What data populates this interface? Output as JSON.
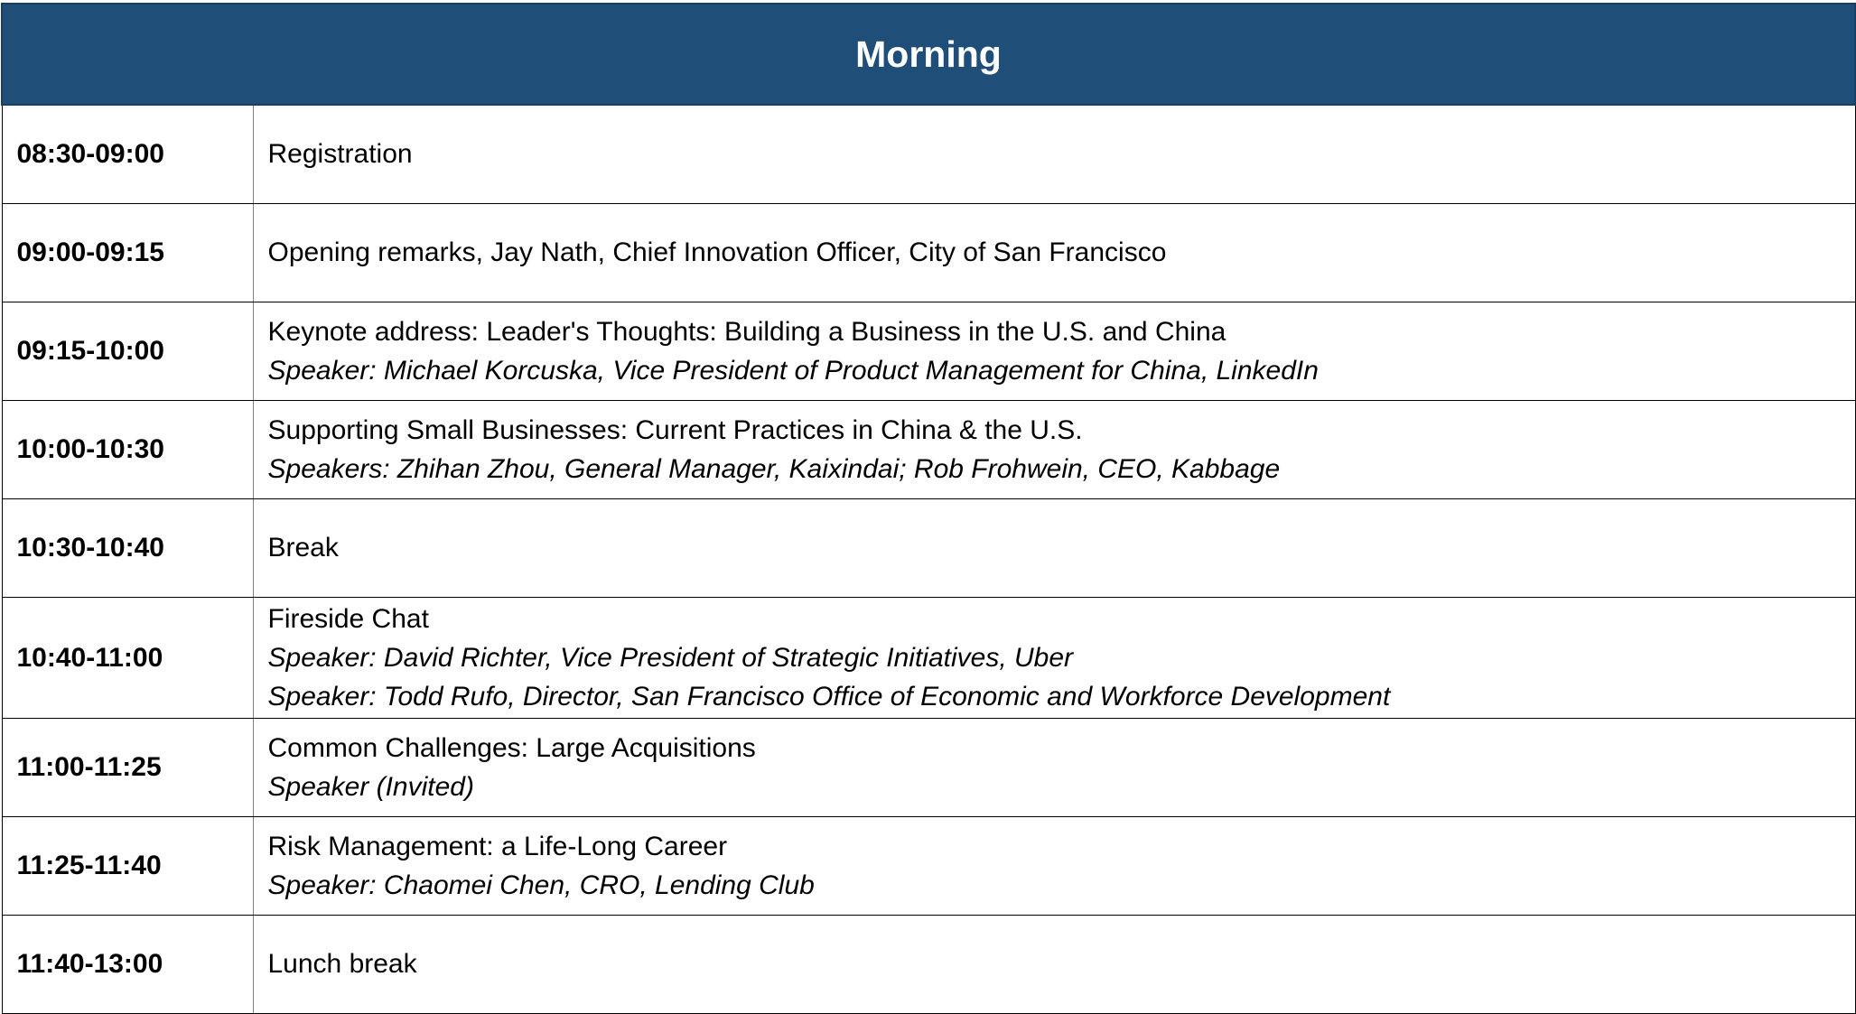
{
  "header": {
    "title": "Morning"
  },
  "rows": [
    {
      "time": "08:30-09:00",
      "title": "Registration",
      "speakers": []
    },
    {
      "time": "09:00-09:15",
      "title": "Opening remarks, Jay Nath, Chief Innovation Officer, City of San Francisco",
      "speakers": []
    },
    {
      "time": "09:15-10:00",
      "title": "Keynote address: Leader's Thoughts: Building a Business in the U.S. and China",
      "speakers": [
        "Speaker: Michael Korcuska, Vice President of Product Management for China, LinkedIn"
      ]
    },
    {
      "time": "10:00-10:30",
      "title": "Supporting Small Businesses: Current Practices in China & the U.S.",
      "speakers": [
        "Speakers: Zhihan Zhou, General Manager, Kaixindai; Rob Frohwein, CEO, Kabbage"
      ]
    },
    {
      "time": "10:30-10:40",
      "title": "Break",
      "speakers": []
    },
    {
      "time": "10:40-11:00",
      "title": "Fireside Chat",
      "speakers": [
        "Speaker: David Richter, Vice President of Strategic Initiatives, Uber",
        "Speaker: Todd Rufo, Director, San Francisco Office of Economic and Workforce Development"
      ]
    },
    {
      "time": "11:00-11:25",
      "title": "Common Challenges: Large Acquisitions",
      "speakers": [
        "Speaker (Invited)"
      ]
    },
    {
      "time": "11:25-11:40",
      "title": "Risk Management: a Life-Long Career",
      "speakers": [
        "Speaker: Chaomei Chen, CRO, Lending Club"
      ]
    },
    {
      "time": "11:40-13:00",
      "title": "Lunch break",
      "speakers": []
    }
  ],
  "colors": {
    "header_background": "#1f4e79",
    "header_text": "#ffffff",
    "grid_lines": "#000000"
  }
}
